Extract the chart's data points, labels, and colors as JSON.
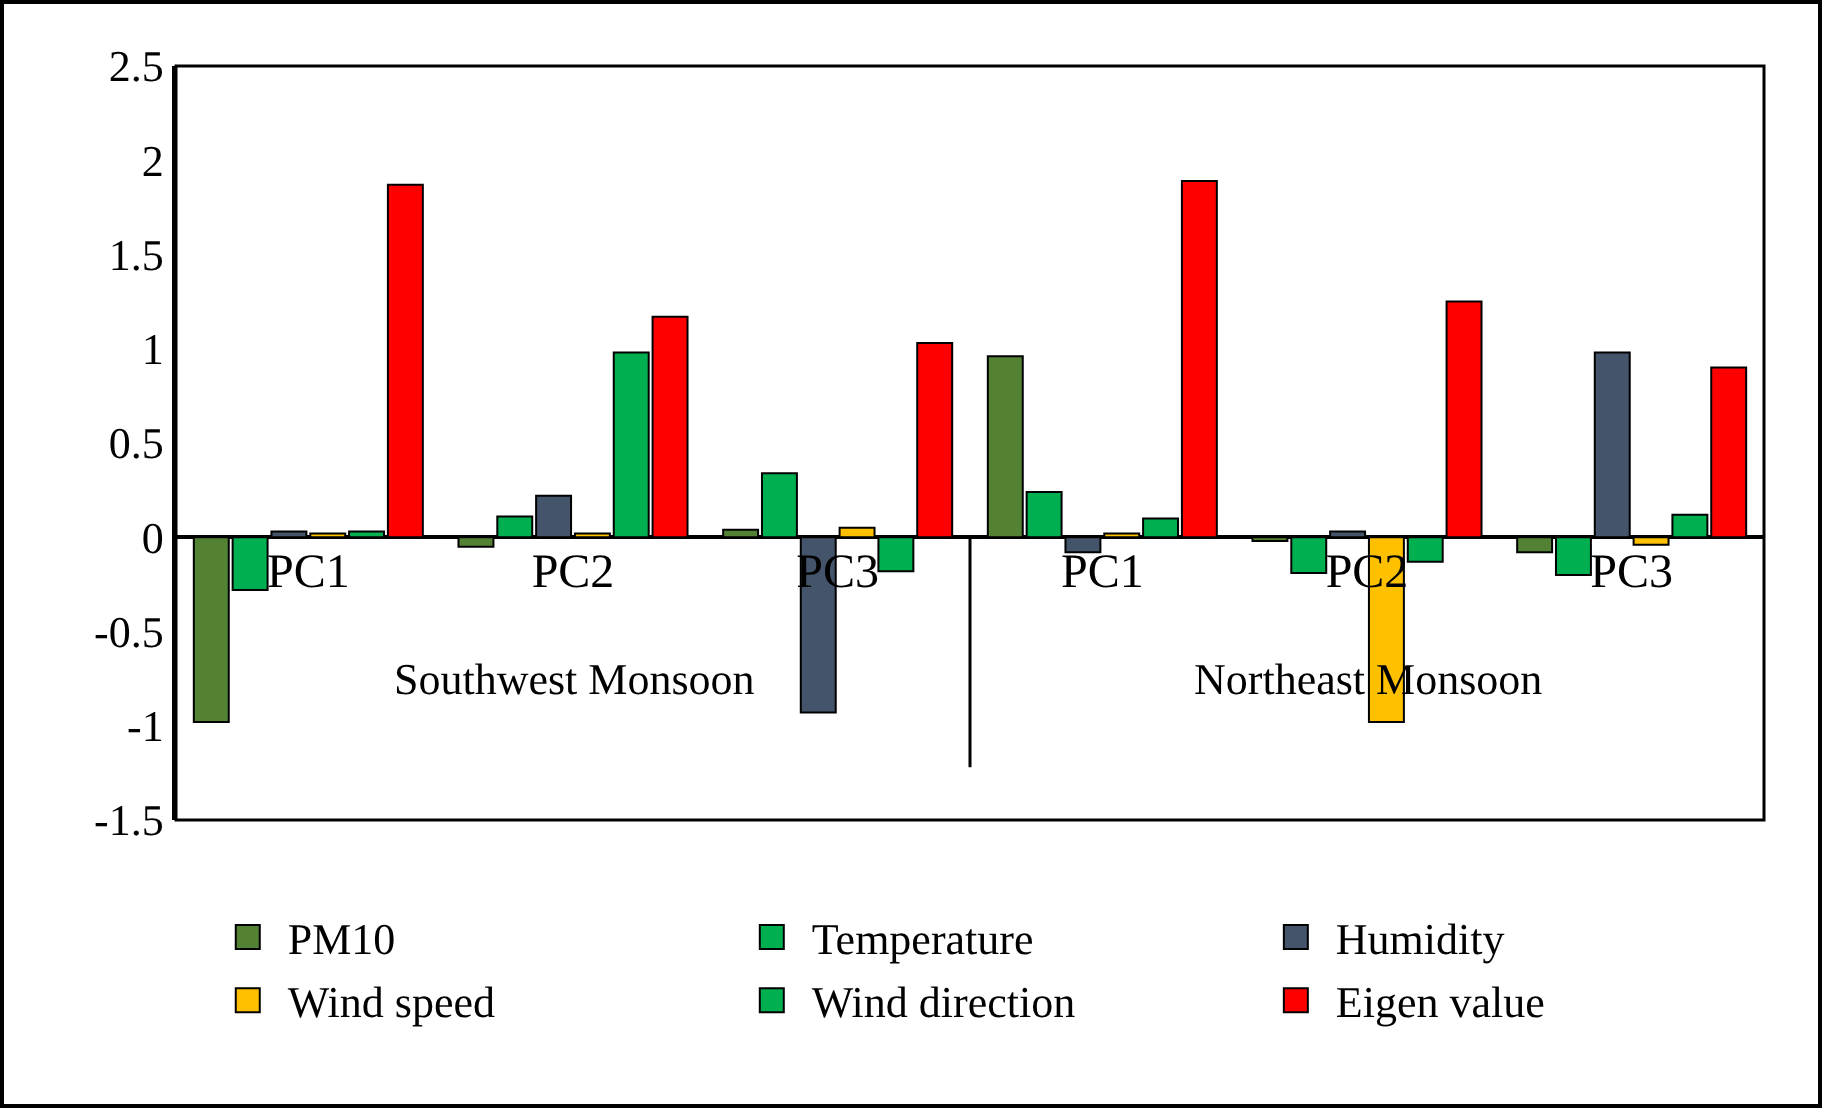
{
  "chart_data": {
    "type": "bar",
    "categories": [
      "PC1",
      "PC2",
      "PC3",
      "PC1",
      "PC2",
      "PC3"
    ],
    "series": [
      {
        "name": "PM10",
        "color": "#548235",
        "values": [
          -0.98,
          -0.05,
          0.04,
          0.96,
          -0.02,
          -0.08
        ]
      },
      {
        "name": "Temperature",
        "color": "#00b050",
        "values": [
          -0.28,
          0.11,
          0.34,
          0.24,
          -0.19,
          -0.2
        ]
      },
      {
        "name": "Humidity",
        "color": "#44546a",
        "values": [
          0.03,
          0.22,
          -0.93,
          -0.08,
          0.03,
          0.98
        ]
      },
      {
        "name": "Wind speed",
        "color": "#ffc000",
        "values": [
          0.02,
          0.02,
          0.05,
          0.02,
          -0.98,
          -0.04
        ]
      },
      {
        "name": "Wind direction",
        "color": "#00b050",
        "values": [
          0.03,
          0.98,
          -0.18,
          0.1,
          -0.13,
          0.12
        ]
      },
      {
        "name": "Eigen value",
        "color": "#ff0000",
        "values": [
          1.87,
          1.17,
          1.03,
          1.89,
          1.25,
          0.9
        ]
      }
    ],
    "annotations": [
      "Southwest Monsoon",
      "Northeast Monsoon"
    ],
    "ylim": [
      -1.5,
      2.5
    ],
    "yticks": [
      -1.5,
      -1,
      -0.5,
      0,
      0.5,
      1,
      1.5,
      2,
      2.5
    ],
    "grid": false,
    "legend": "bottom"
  }
}
